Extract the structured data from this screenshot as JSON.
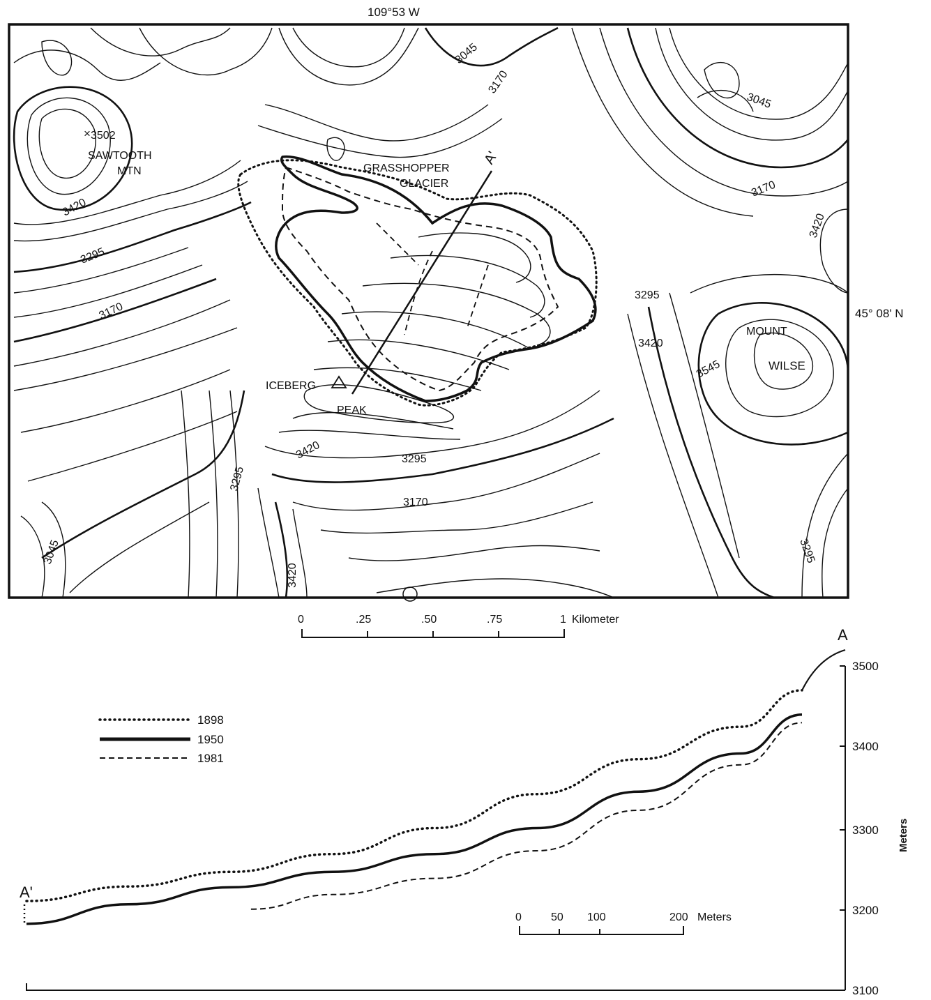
{
  "map": {
    "longitude_label": "109°53 W",
    "latitude_label": "45° 08' N",
    "contour_labels": [
      "3045",
      "3170",
      "3045",
      "3502",
      "3420",
      "3295",
      "3170",
      "3170",
      "3420",
      "3295",
      "3420",
      "3545",
      "3420",
      "3295",
      "3170",
      "3295",
      "3045",
      "3420",
      "3295"
    ],
    "place_labels": {
      "sawtooth_1": "SAWTOOTH",
      "sawtooth_2": "MTN",
      "grasshopper_1": "GRASSHOPPER",
      "grasshopper_2": "GLACIER",
      "mount": "MOUNT",
      "wilse": "WILSE",
      "iceberg": "ICEBERG",
      "peak": "PEAK",
      "section_end": "A'"
    },
    "scale": {
      "ticks": [
        "0",
        ".25",
        ".50",
        ".75",
        "1"
      ],
      "unit": "Kilometer"
    }
  },
  "profile": {
    "label_a": "A",
    "label_a_prime": "A'",
    "y_axis": {
      "label": "Meters",
      "ticks": [
        "3500",
        "3400",
        "3300",
        "3200",
        "3100"
      ],
      "range": [
        3100,
        3500
      ]
    },
    "legend": [
      {
        "year": "1898",
        "style": "dotted"
      },
      {
        "year": "1950",
        "style": "solid"
      },
      {
        "year": "1981",
        "style": "dashed"
      }
    ],
    "scale": {
      "ticks": [
        "0",
        "50",
        "100",
        "200"
      ],
      "unit": "Meters"
    },
    "series": [
      {
        "name": "1898",
        "x": [
          0,
          100,
          200,
          300,
          400,
          500,
          600,
          700,
          760
        ],
        "y": [
          3210,
          3228,
          3246,
          3268,
          3300,
          3342,
          3385,
          3425,
          3470
        ]
      },
      {
        "name": "1950",
        "x": [
          0,
          100,
          200,
          300,
          400,
          500,
          600,
          700,
          760
        ],
        "y": [
          3182,
          3206,
          3227,
          3246,
          3268,
          3300,
          3345,
          3392,
          3440
        ]
      },
      {
        "name": "1981",
        "x": [
          220,
          300,
          400,
          500,
          600,
          700,
          760
        ],
        "y": [
          3200,
          3218,
          3238,
          3272,
          3322,
          3378,
          3430
        ]
      }
    ]
  }
}
